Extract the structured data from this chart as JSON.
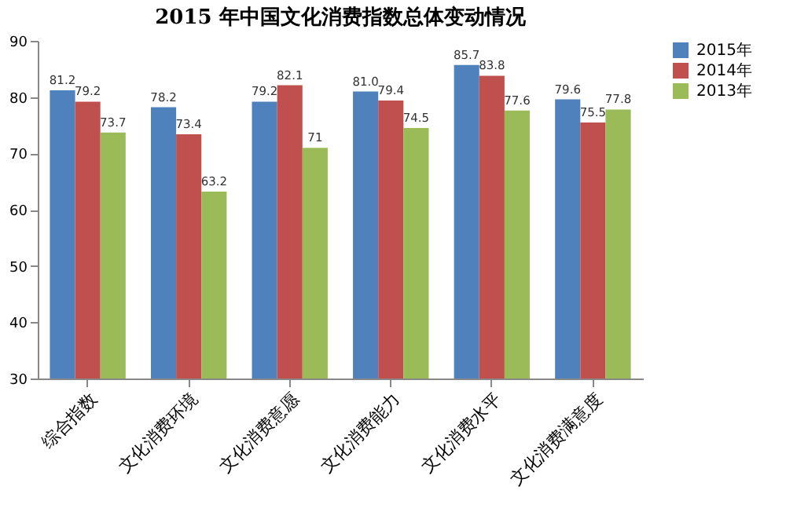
{
  "chart_data": {
    "type": "bar",
    "title": "2015 年中国文化消费指数总体变动情况",
    "categories": [
      "综合指数",
      "文化消费环境",
      "文化消费意愿",
      "文化消费能力",
      "文化消费水平",
      "文化消费满意度"
    ],
    "series": [
      {
        "name": "2015年",
        "color": "#4f81bd",
        "values": [
          81.2,
          78.2,
          79.2,
          81.0,
          85.7,
          79.6
        ],
        "value_labels": [
          "81.2",
          "78.2",
          "79.2",
          "81.0",
          "85.7",
          "79.6"
        ]
      },
      {
        "name": "2014年",
        "color": "#c0504d",
        "values": [
          79.2,
          73.4,
          82.1,
          79.4,
          83.8,
          75.5
        ],
        "value_labels": [
          "79.2",
          "73.4",
          "82.1",
          "79.4",
          "83.8",
          "75.5"
        ]
      },
      {
        "name": "2013年",
        "color": "#9bbb59",
        "values": [
          73.7,
          63.2,
          71,
          74.5,
          77.6,
          77.8
        ],
        "value_labels": [
          "73.7",
          "63.2",
          "71",
          "74.5",
          "77.6",
          "77.8"
        ]
      }
    ],
    "ylim": [
      30,
      90
    ],
    "yticks": [
      30,
      40,
      50,
      60,
      70,
      80,
      90
    ],
    "grid": false,
    "legend": "right"
  }
}
